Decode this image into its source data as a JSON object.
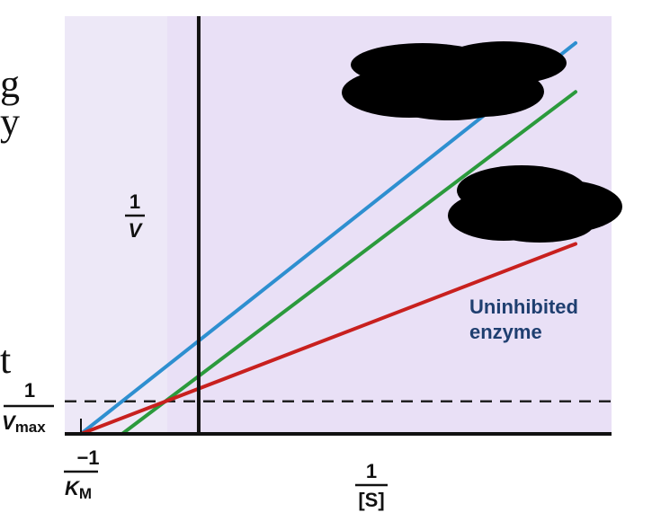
{
  "chart_data": {
    "type": "line",
    "title": "",
    "xlabel": "1/[S]",
    "ylabel": "1/V",
    "xlim": [
      -1.0,
      3.2
    ],
    "ylim": [
      0.0,
      3.5
    ],
    "grid": false,
    "axis_labels": {
      "y_numerator": "1",
      "y_denominator": "V",
      "x_numerator": "1",
      "x_denominator": "[S]",
      "vmax_numerator": "1",
      "vmax_denominator_main": "V",
      "vmax_denominator_sub": "max",
      "km_numerator": "−1",
      "km_denominator_main": "K",
      "km_denominator_sub": "M"
    },
    "reference_line": {
      "label": "1/Vmax",
      "y": 0.3,
      "style": "dashed"
    },
    "series": [
      {
        "name": "",
        "color": "#2e8fd0",
        "points": [
          [
            -1.0,
            0.0
          ],
          [
            3.2,
            3.6
          ]
        ]
      },
      {
        "name": "",
        "color": "#2b9a3c",
        "points": [
          [
            -0.65,
            0.0
          ],
          [
            3.2,
            3.15
          ]
        ]
      },
      {
        "name": "Uninhibited enzyme",
        "color": "#c8201e",
        "points": [
          [
            -1.0,
            0.0
          ],
          [
            3.2,
            1.75
          ]
        ]
      }
    ],
    "annotations": [
      {
        "text_lines": [
          "Uninhibited",
          "enzyme"
        ],
        "color": "#1f3f70"
      }
    ]
  },
  "cropped_text": {
    "line1": "g",
    "line2": "t"
  }
}
